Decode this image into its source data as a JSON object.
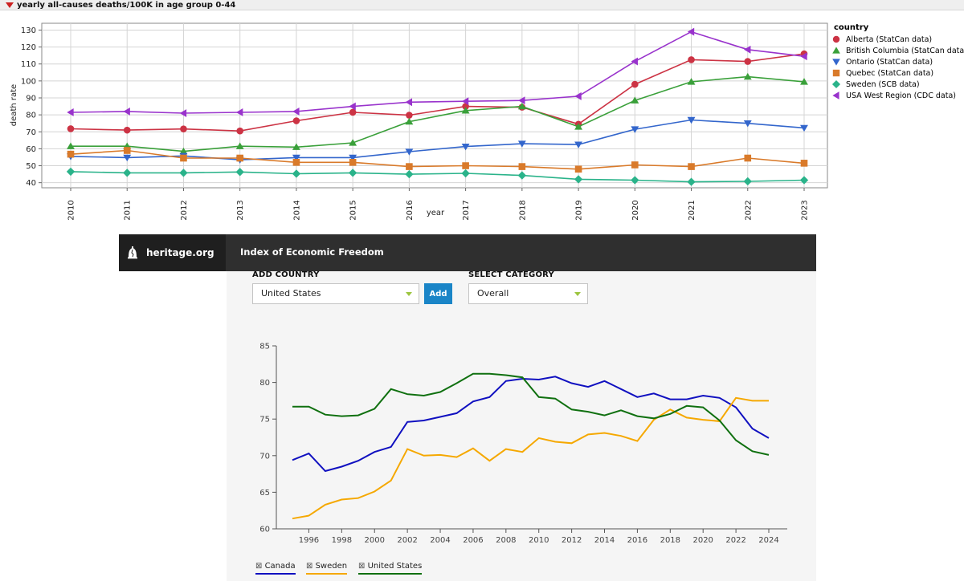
{
  "top_chart": {
    "title": "yearly all-causes deaths/100K in age group 0-44",
    "legend_title": "country",
    "chart_data": {
      "type": "line",
      "title": "yearly all-causes deaths/100K in age group 0-44",
      "xlabel": "year",
      "ylabel": "death rate",
      "x": [
        2010,
        2011,
        2012,
        2013,
        2014,
        2015,
        2016,
        2017,
        2018,
        2019,
        2020,
        2021,
        2022,
        2023
      ],
      "ylim": [
        37,
        134
      ],
      "yticks": [
        40,
        50,
        60,
        70,
        80,
        90,
        100,
        110,
        120,
        130
      ],
      "grid": true,
      "legend_position": "right",
      "series": [
        {
          "name": "Alberta (StatCan data)",
          "color": "#cc3344",
          "marker": "circle",
          "values": [
            71.8,
            71.0,
            71.7,
            70.5,
            76.5,
            81.5,
            79.8,
            85.0,
            84.5,
            74.5,
            98.0,
            112.5,
            111.5,
            116.0
          ]
        },
        {
          "name": "British Columbia (StatCan data)",
          "color": "#3aa03a",
          "marker": "triangle-up",
          "values": [
            61.5,
            61.5,
            58.5,
            61.5,
            61.0,
            63.5,
            76.0,
            82.5,
            85.0,
            73.0,
            88.5,
            99.5,
            102.5,
            99.5
          ]
        },
        {
          "name": "Ontario (StatCan data)",
          "color": "#3366cc",
          "marker": "triangle-down",
          "values": [
            55.5,
            54.8,
            55.8,
            53.5,
            54.8,
            54.8,
            58.3,
            61.3,
            63.0,
            62.5,
            71.5,
            77.0,
            75.0,
            72.3
          ]
        },
        {
          "name": "Quebec (StatCan data)",
          "color": "#d97a2a",
          "marker": "square",
          "values": [
            56.8,
            59.0,
            54.5,
            54.5,
            52.0,
            52.0,
            49.5,
            50.0,
            49.5,
            48.0,
            50.5,
            49.5,
            54.5,
            51.5
          ]
        },
        {
          "name": "Sweden (SCB data)",
          "color": "#2ab38a",
          "marker": "diamond",
          "values": [
            46.5,
            45.8,
            45.8,
            46.3,
            45.3,
            45.8,
            45.0,
            45.5,
            44.3,
            42.0,
            41.5,
            40.5,
            40.8,
            41.5
          ]
        },
        {
          "name": "USA West Region (CDC data)",
          "color": "#9933cc",
          "marker": "triangle-left",
          "values": [
            81.5,
            82.0,
            81.0,
            81.5,
            82.0,
            85.0,
            87.5,
            88.0,
            88.5,
            91.0,
            111.5,
            129.0,
            118.5,
            114.5
          ]
        }
      ]
    }
  },
  "heritage": {
    "brand": "heritage.org",
    "title": "Index of Economic Freedom",
    "add_country_label": "ADD COUNTRY",
    "country_value": "United States",
    "add_button": "Add",
    "select_category_label": "SELECT CATEGORY",
    "category_value": "Overall",
    "chart_data": {
      "type": "line",
      "x": [
        1995,
        1996,
        1997,
        1998,
        1999,
        2000,
        2001,
        2002,
        2003,
        2004,
        2005,
        2006,
        2007,
        2008,
        2009,
        2010,
        2011,
        2012,
        2013,
        2014,
        2015,
        2016,
        2017,
        2018,
        2019,
        2020,
        2021,
        2022,
        2023,
        2024
      ],
      "xticks": [
        1996,
        1998,
        2000,
        2002,
        2004,
        2006,
        2008,
        2010,
        2012,
        2014,
        2016,
        2018,
        2020,
        2022,
        2024
      ],
      "ylim": [
        60,
        85
      ],
      "yticks": [
        60,
        65,
        70,
        75,
        80,
        85
      ],
      "legend_position": "bottom-left",
      "series": [
        {
          "name": "Canada",
          "color": "#1010c0",
          "values": [
            69.4,
            70.3,
            67.9,
            68.5,
            69.3,
            70.5,
            71.2,
            74.6,
            74.8,
            75.3,
            75.8,
            77.4,
            78.0,
            80.2,
            80.5,
            80.4,
            80.8,
            79.9,
            79.4,
            80.2,
            79.1,
            78.0,
            78.5,
            77.7,
            77.7,
            78.2,
            77.9,
            76.6,
            73.7,
            72.4
          ]
        },
        {
          "name": "Sweden",
          "color": "#f5a800",
          "values": [
            61.4,
            61.8,
            63.3,
            64.0,
            64.2,
            65.1,
            66.6,
            70.9,
            70.0,
            70.1,
            69.8,
            71.0,
            69.3,
            70.9,
            70.5,
            72.4,
            71.9,
            71.7,
            72.9,
            73.1,
            72.7,
            72.0,
            74.9,
            76.3,
            75.2,
            74.9,
            74.7,
            77.9,
            77.5,
            77.5
          ]
        },
        {
          "name": "United States",
          "color": "#107010",
          "values": [
            76.7,
            76.7,
            75.6,
            75.4,
            75.5,
            76.4,
            79.1,
            78.4,
            78.2,
            78.7,
            79.9,
            81.2,
            81.2,
            81.0,
            80.7,
            78.0,
            77.8,
            76.3,
            76.0,
            75.5,
            76.2,
            75.4,
            75.1,
            75.7,
            76.8,
            76.6,
            74.8,
            72.1,
            70.6,
            70.1
          ]
        }
      ]
    }
  }
}
